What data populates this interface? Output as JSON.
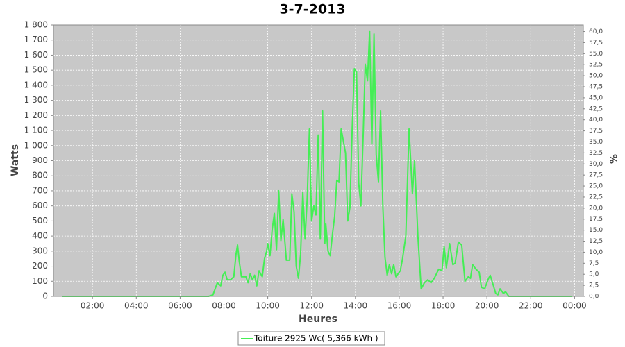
{
  "chart_data": {
    "type": "line",
    "title": "3-7-2013",
    "x_label": "Heures",
    "y_label": "Watts",
    "y2_label": "%",
    "grid": true,
    "xlim": [
      0.22,
      24.4
    ],
    "xticks": [
      {
        "value": 2,
        "label": "02:00"
      },
      {
        "value": 4,
        "label": "04:00"
      },
      {
        "value": 6,
        "label": "06:00"
      },
      {
        "value": 8,
        "label": "08:00"
      },
      {
        "value": 10,
        "label": "10:00"
      },
      {
        "value": 12,
        "label": "12:00"
      },
      {
        "value": 14,
        "label": "14:00"
      },
      {
        "value": 16,
        "label": "16:00"
      },
      {
        "value": 18,
        "label": "18:00"
      },
      {
        "value": 20,
        "label": "20:00"
      },
      {
        "value": 22,
        "label": "22:00"
      },
      {
        "value": 24,
        "label": "00:00"
      }
    ],
    "ylim": [
      0,
      1800
    ],
    "yticks": [
      0,
      100,
      200,
      300,
      400,
      500,
      600,
      700,
      800,
      900,
      {
        "value": 1000,
        "label": "1 000"
      },
      {
        "value": 1100,
        "label": "1 100"
      },
      {
        "value": 1200,
        "label": "1 200"
      },
      {
        "value": 1300,
        "label": "1 300"
      },
      {
        "value": 1400,
        "label": "1 400"
      },
      {
        "value": 1500,
        "label": "1 500"
      },
      {
        "value": 1600,
        "label": "1 600"
      },
      {
        "value": 1700,
        "label": "1 700"
      },
      {
        "value": 1800,
        "label": "1 800"
      }
    ],
    "y2lim": [
      0,
      61.5
    ],
    "y2ticks": [
      {
        "value": 0,
        "label": "0,0"
      },
      {
        "value": 2.5,
        "label": "2,5"
      },
      {
        "value": 5,
        "label": "5,0"
      },
      {
        "value": 7.5,
        "label": "7,5"
      },
      {
        "value": 10,
        "label": "10,0"
      },
      {
        "value": 12.5,
        "label": "12,5"
      },
      {
        "value": 15,
        "label": "15,0"
      },
      {
        "value": 17.5,
        "label": "17,5"
      },
      {
        "value": 20,
        "label": "20,0"
      },
      {
        "value": 22.5,
        "label": "22,5"
      },
      {
        "value": 25,
        "label": "25,0"
      },
      {
        "value": 27.5,
        "label": "27,5"
      },
      {
        "value": 30,
        "label": "30,0"
      },
      {
        "value": 32.5,
        "label": "32,5"
      },
      {
        "value": 35,
        "label": "35,0"
      },
      {
        "value": 37.5,
        "label": "37,5"
      },
      {
        "value": 40,
        "label": "40,0"
      },
      {
        "value": 42.5,
        "label": "42,5"
      },
      {
        "value": 45,
        "label": "45,0"
      },
      {
        "value": 47.5,
        "label": "47,5"
      },
      {
        "value": 50,
        "label": "50,0"
      },
      {
        "value": 52.5,
        "label": "52,5"
      },
      {
        "value": 55,
        "label": "55,0"
      },
      {
        "value": 57.5,
        "label": "57,5"
      },
      {
        "value": 60,
        "label": "60,0"
      }
    ],
    "x": [
      0.6,
      7.3,
      7.5,
      7.7,
      7.85,
      7.95,
      8.05,
      8.15,
      8.3,
      8.45,
      8.55,
      8.62,
      8.7,
      8.8,
      9.0,
      9.1,
      9.2,
      9.3,
      9.4,
      9.5,
      9.6,
      9.75,
      9.85,
      9.95,
      10.0,
      10.1,
      10.2,
      10.3,
      10.4,
      10.5,
      10.6,
      10.7,
      10.85,
      11.0,
      11.1,
      11.2,
      11.3,
      11.4,
      11.5,
      11.6,
      11.7,
      11.8,
      11.9,
      12.0,
      12.1,
      12.2,
      12.3,
      12.4,
      12.5,
      12.6,
      12.65,
      12.75,
      12.85,
      12.95,
      13.05,
      13.15,
      13.25,
      13.35,
      13.45,
      13.55,
      13.65,
      13.75,
      13.85,
      13.95,
      14.05,
      14.15,
      14.25,
      14.35,
      14.45,
      14.55,
      14.65,
      14.75,
      14.85,
      14.95,
      15.05,
      15.15,
      15.25,
      15.35,
      15.45,
      15.55,
      15.65,
      15.75,
      15.85,
      15.95,
      16.05,
      16.15,
      16.3,
      16.45,
      16.6,
      16.7,
      16.85,
      17.0,
      17.15,
      17.3,
      17.45,
      17.6,
      17.8,
      17.95,
      18.05,
      18.15,
      18.3,
      18.45,
      18.55,
      18.7,
      18.85,
      19.0,
      19.15,
      19.25,
      19.35,
      19.5,
      19.65,
      19.75,
      19.9,
      20.05,
      20.15,
      20.3,
      20.4,
      20.5,
      20.6,
      20.75,
      20.85,
      21.0,
      23.9
    ],
    "series": [
      {
        "name": "Toiture 2925 Wc( 5,366 kWh )",
        "color": "#44ee55",
        "values": [
          0,
          0,
          10,
          90,
          70,
          140,
          160,
          110,
          110,
          130,
          280,
          340,
          230,
          130,
          130,
          90,
          150,
          110,
          140,
          70,
          170,
          130,
          250,
          300,
          350,
          270,
          440,
          550,
          310,
          700,
          370,
          510,
          240,
          240,
          680,
          560,
          200,
          120,
          280,
          690,
          380,
          650,
          1110,
          500,
          600,
          540,
          1070,
          380,
          1230,
          350,
          480,
          300,
          270,
          410,
          530,
          770,
          760,
          1110,
          1030,
          950,
          500,
          590,
          1100,
          1510,
          1490,
          750,
          600,
          1050,
          1540,
          1430,
          1760,
          1010,
          1740,
          940,
          760,
          1230,
          600,
          260,
          140,
          210,
          150,
          210,
          130,
          150,
          170,
          250,
          400,
          1110,
          680,
          900,
          400,
          50,
          90,
          110,
          90,
          120,
          180,
          170,
          330,
          190,
          350,
          210,
          220,
          360,
          340,
          100,
          130,
          120,
          210,
          180,
          160,
          60,
          50,
          110,
          140,
          70,
          20,
          10,
          50,
          20,
          30,
          0,
          0
        ]
      }
    ]
  }
}
